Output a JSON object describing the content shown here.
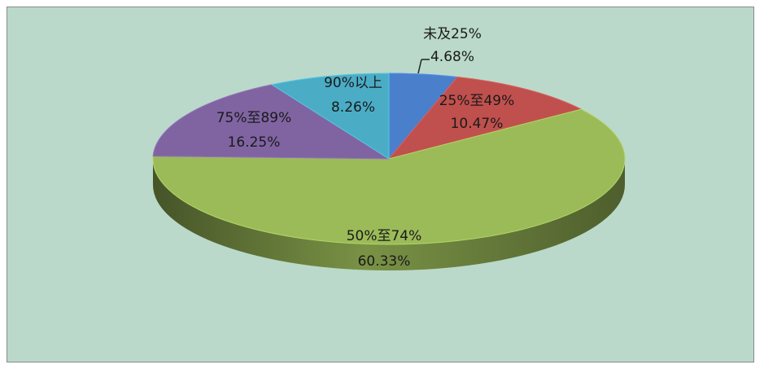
{
  "chart_data": {
    "type": "pie",
    "title": "",
    "slices": [
      {
        "label": "未及25%",
        "value": 4.68,
        "pct_label": "4.68%",
        "color": "#4a7fcc"
      },
      {
        "label": "25%至49%",
        "value": 10.47,
        "pct_label": "10.47%",
        "color": "#c0504d"
      },
      {
        "label": "50%至74%",
        "value": 60.33,
        "pct_label": "60.33%",
        "color": "#9bbb59"
      },
      {
        "label": "75%至89%",
        "value": 16.25,
        "pct_label": "16.25%",
        "color": "#8064a2"
      },
      {
        "label": "90%以上",
        "value": 8.26,
        "pct_label": "8.26%",
        "color": "#4bacc6"
      }
    ],
    "legend": "none",
    "style": "3d-pie"
  }
}
